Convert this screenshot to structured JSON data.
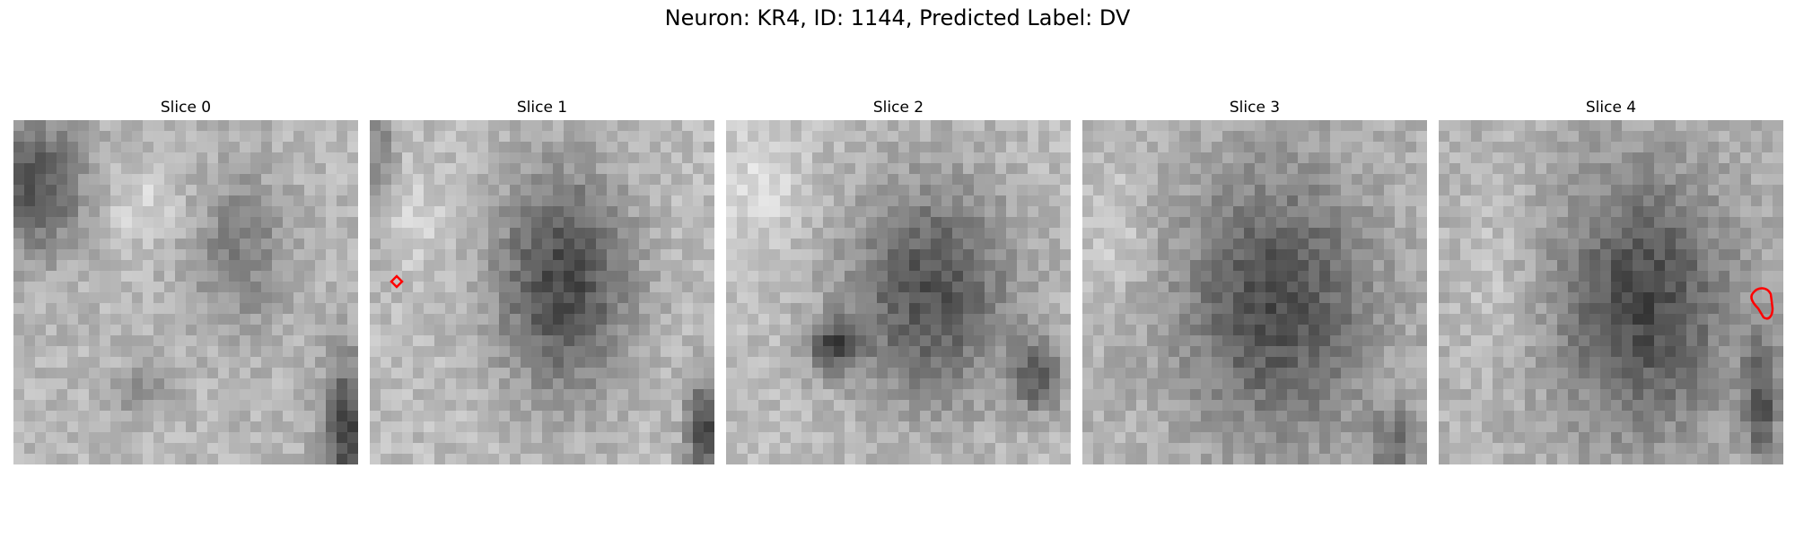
{
  "figure": {
    "title": "Neuron: KR4, ID: 1144, Predicted Label: DV"
  },
  "slices": [
    {
      "title": "Slice 0",
      "contour": false
    },
    {
      "title": "Slice 1",
      "contour": true
    },
    {
      "title": "Slice 2",
      "contour": false
    },
    {
      "title": "Slice 3",
      "contour": false
    },
    {
      "title": "Slice 4",
      "contour": true
    }
  ],
  "colors": {
    "contour": "#ff0000",
    "colormap": "gray"
  }
}
